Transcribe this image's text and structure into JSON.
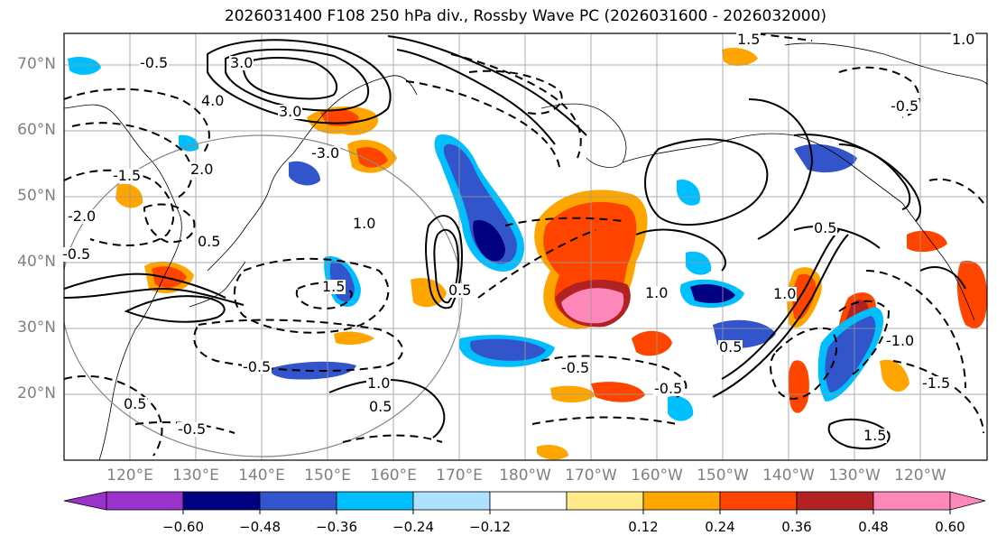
{
  "title": "2026031400 F108 250 hPa div., Rossby Wave PC (2026031600 - 2026032000)",
  "lat_labels": [
    "70°N",
    "60°N",
    "50°N",
    "40°N",
    "30°N",
    "20°N"
  ],
  "lon_labels": [
    "120°E",
    "130°E",
    "140°E",
    "150°E",
    "160°E",
    "170°E",
    "180°W",
    "170°W",
    "160°W",
    "150°W",
    "140°W",
    "130°W",
    "120°W"
  ],
  "contour_labels": [
    "-0.5",
    "1.5",
    "1.0",
    "3.0",
    "4.0",
    "3.0",
    "-3.0",
    "-1.5",
    "2.0",
    "-2.0",
    "0.5",
    "-0.5",
    "1.0",
    "0.5",
    "-0.5",
    "1.0",
    "0.5",
    "-0.5",
    "1.5",
    "-0.5",
    "1.0",
    "0.5",
    "-0.5",
    "-1.5",
    "1.0",
    "0.5",
    "-0.5",
    "-1.0",
    "0.5",
    "1.5"
  ],
  "colorbar": {
    "ticks": [
      "−0.60",
      "−0.48",
      "−0.36",
      "−0.24",
      "−0.12",
      "0.12",
      "0.24",
      "0.36",
      "0.48",
      "0.60"
    ],
    "colors": [
      "#9933cc",
      "#000080",
      "#3355cc",
      "#00bfff",
      "#aee1ff",
      "#ffffff",
      "#ffeb8a",
      "#ffa500",
      "#ff4400",
      "#b22222",
      "#ff88bb",
      "#ff88bb"
    ]
  }
}
